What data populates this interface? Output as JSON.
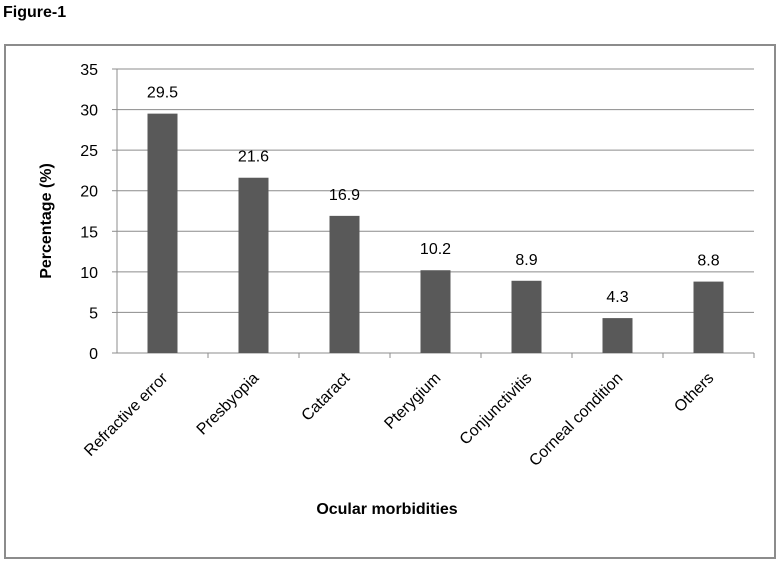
{
  "figure_label": "Figure-1",
  "chart_data": {
    "type": "bar",
    "title": "",
    "xlabel": "Ocular morbidities",
    "ylabel": "Percentage (%)",
    "categories": [
      "Refractive error",
      "Presbyopia",
      "Cataract",
      "Pterygium",
      "Conjunctivitis",
      "Corneal condition",
      "Others"
    ],
    "values": [
      29.5,
      21.6,
      16.9,
      10.2,
      8.9,
      4.3,
      8.8
    ],
    "data_labels": [
      "29.5",
      "21.6",
      "16.9",
      "10.2",
      "8.9",
      "4.3",
      "8.8"
    ],
    "ylim": [
      0,
      35
    ],
    "yticks": [
      0,
      5,
      10,
      15,
      20,
      25,
      30,
      35
    ],
    "grid": true,
    "legend": "none",
    "bar_color": "#595959",
    "grid_color": "#8c8c8c"
  }
}
